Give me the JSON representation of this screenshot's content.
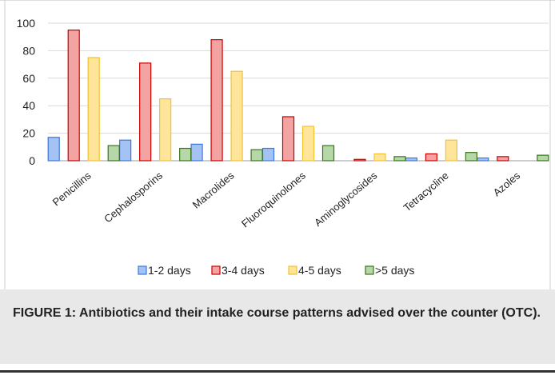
{
  "caption": "FIGURE 1: Antibiotics and their intake course patterns advised over the counter (OTC).",
  "chart_data": {
    "type": "bar",
    "categories": [
      "Penicillins",
      "Cephalosporins",
      "Macrolides",
      "Fluoroquinolones",
      "Aminoglycosides",
      "Tetracycline",
      "Azoles"
    ],
    "series": [
      {
        "name": "1-2 days",
        "color": "#3c78d8",
        "fill": "#a4c2f4",
        "values": [
          17,
          15,
          12,
          9,
          0,
          2,
          2
        ]
      },
      {
        "name": "3-4 days",
        "color": "#cc0000",
        "fill": "#f4a3a3",
        "values": [
          95,
          71,
          88,
          32,
          1,
          5,
          3
        ]
      },
      {
        "name": "4-5 days",
        "color": "#f1c232",
        "fill": "#ffe599",
        "values": [
          75,
          45,
          65,
          25,
          5,
          15,
          0
        ]
      },
      {
        "name": ">5 days",
        "color": "#38761d",
        "fill": "#b6d7a8",
        "values": [
          11,
          9,
          8,
          11,
          3,
          6,
          4
        ]
      }
    ],
    "yticks": [
      "0",
      "20",
      "40",
      "60",
      "80",
      "100"
    ],
    "ylim": [
      0,
      100
    ],
    "grid": true,
    "legend": "bottom"
  }
}
